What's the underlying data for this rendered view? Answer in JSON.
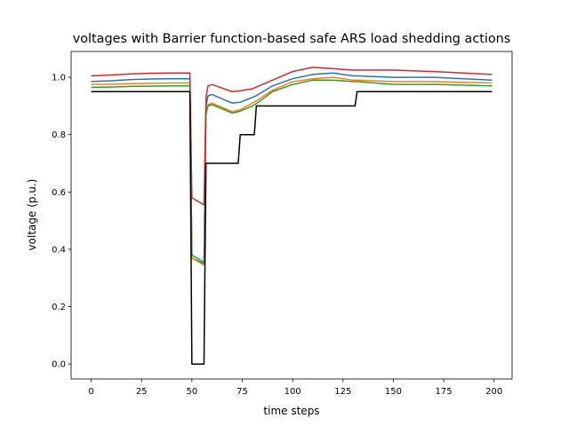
{
  "chart_data": {
    "type": "line",
    "title": "voltages with Barrier function-based safe ARS load shedding actions",
    "x_label": "time steps",
    "y_label": "voltage (p.u.)",
    "x": [
      0,
      10,
      20,
      30,
      40,
      49,
      50,
      56,
      57,
      58,
      60,
      70,
      73,
      74,
      80,
      81,
      82,
      90,
      100,
      110,
      120,
      130,
      131,
      132,
      150,
      170,
      199
    ],
    "series": [
      {
        "color": "#1f77b4",
        "values": [
          0.985,
          0.988,
          0.992,
          0.994,
          0.995,
          0.995,
          0.37,
          0.35,
          0.9,
          0.935,
          0.94,
          0.91,
          0.912,
          0.913,
          0.93,
          0.933,
          0.936,
          0.97,
          0.995,
          1.01,
          1.015,
          1.005,
          1.005,
          1.005,
          1.0,
          1.0,
          0.99
        ]
      },
      {
        "color": "#ff7f0e",
        "values": [
          0.975,
          0.976,
          0.978,
          0.979,
          0.98,
          0.98,
          0.37,
          0.345,
          0.88,
          0.905,
          0.91,
          0.88,
          0.885,
          0.887,
          0.91,
          0.914,
          0.918,
          0.955,
          0.985,
          0.995,
          1.0,
          0.99,
          0.99,
          0.99,
          0.985,
          0.985,
          0.98
        ]
      },
      {
        "color": "#2ca02c",
        "values": [
          0.965,
          0.966,
          0.968,
          0.969,
          0.97,
          0.97,
          0.38,
          0.355,
          0.87,
          0.9,
          0.905,
          0.875,
          0.88,
          0.882,
          0.9,
          0.904,
          0.908,
          0.95,
          0.975,
          0.99,
          0.99,
          0.985,
          0.985,
          0.985,
          0.975,
          0.975,
          0.97
        ]
      },
      {
        "color": "#d62728",
        "values": [
          1.005,
          1.008,
          1.012,
          1.014,
          1.015,
          1.015,
          0.58,
          0.555,
          0.93,
          0.97,
          0.975,
          0.95,
          0.952,
          0.953,
          0.96,
          0.963,
          0.966,
          0.99,
          1.02,
          1.035,
          1.03,
          1.025,
          1.025,
          1.025,
          1.025,
          1.02,
          1.01
        ]
      },
      {
        "color": "#000000",
        "values": [
          0.95,
          0.95,
          0.95,
          0.95,
          0.95,
          0.95,
          0,
          0,
          0.7,
          0.7,
          0.7,
          0.7,
          0.7,
          0.8,
          0.8,
          0.8,
          0.9,
          0.9,
          0.9,
          0.9,
          0.9,
          0.9,
          0.9,
          0.95,
          0.95,
          0.95,
          0.95
        ]
      }
    ],
    "xlim": [
      -9.95,
      208.95
    ],
    "ylim": [
      -0.052,
      1.09
    ],
    "xticks": [
      0,
      25,
      50,
      75,
      100,
      125,
      150,
      175,
      200
    ],
    "yticks": [
      {
        "value": 0,
        "label": "0.0"
      },
      0.2,
      0.4,
      0.6,
      0.8,
      {
        "value": 1,
        "label": "1.0"
      }
    ],
    "grid": false
  }
}
